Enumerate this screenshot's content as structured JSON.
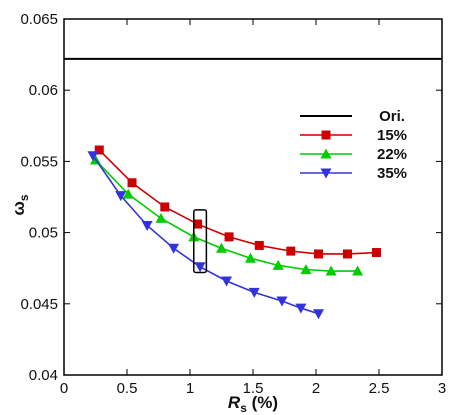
{
  "chart_data": {
    "type": "line",
    "title": "",
    "xlabel": {
      "main": "R",
      "sub": "s",
      "suffix": " (%)"
    },
    "ylabel": {
      "main": "ω",
      "sub": "s"
    },
    "xlim": [
      0,
      3
    ],
    "ylim": [
      0.04,
      0.065
    ],
    "xticks": [
      0,
      0.5,
      1,
      1.5,
      2,
      2.5,
      3
    ],
    "xtick_labels": [
      "0",
      "0.5",
      "1",
      "1.5",
      "2",
      "2.5",
      "3"
    ],
    "yticks": [
      0.04,
      0.045,
      0.05,
      0.055,
      0.06,
      0.065
    ],
    "ytick_labels": [
      "0.04",
      "0.045",
      "0.05",
      "0.055",
      "0.06",
      "0.065"
    ],
    "grid": false,
    "legend_position": "right",
    "series": [
      {
        "name": "Ori.",
        "color": "#000000",
        "marker": "none",
        "x": [
          0,
          3
        ],
        "y": [
          0.0622,
          0.0622
        ]
      },
      {
        "name": "15%",
        "color": "#cc0000",
        "marker": "square",
        "x": [
          0.28,
          0.54,
          0.8,
          1.06,
          1.31,
          1.55,
          1.8,
          2.02,
          2.25,
          2.48
        ],
        "y": [
          0.0558,
          0.0535,
          0.0518,
          0.0506,
          0.0497,
          0.0491,
          0.0487,
          0.0485,
          0.0485,
          0.0486
        ]
      },
      {
        "name": "22%",
        "color": "#00cc00",
        "marker": "triangle-up",
        "x": [
          0.25,
          0.51,
          0.77,
          1.03,
          1.25,
          1.48,
          1.7,
          1.92,
          2.12,
          2.33
        ],
        "y": [
          0.0551,
          0.0527,
          0.051,
          0.0497,
          0.0489,
          0.0482,
          0.0477,
          0.0474,
          0.0473,
          0.0473
        ]
      },
      {
        "name": "35%",
        "color": "#3333dd",
        "marker": "triangle-down",
        "x": [
          0.23,
          0.45,
          0.66,
          0.87,
          1.08,
          1.29,
          1.51,
          1.73,
          1.88,
          2.02
        ],
        "y": [
          0.0554,
          0.0526,
          0.0505,
          0.0489,
          0.0476,
          0.0466,
          0.0458,
          0.0452,
          0.0447,
          0.0443
        ]
      }
    ],
    "annotation": {
      "type": "rectangle",
      "x_range": [
        1.03,
        1.13
      ],
      "y_range": [
        0.0472,
        0.0516
      ]
    }
  }
}
